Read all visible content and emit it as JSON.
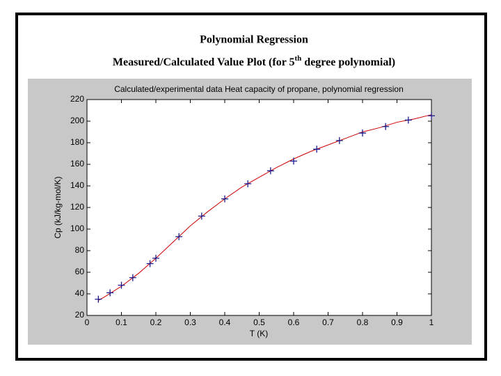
{
  "header": {
    "title": "Polynomial Regression",
    "subtitle": {
      "before": "Measured/Calculated Value Plot (for 5",
      "sup": "th",
      "after": " degree polynomial)"
    }
  },
  "chart_data": {
    "type": "line",
    "title": "Calculated/experimental data Heat capacity of propane, polynomial regression",
    "x_label": "T (K)",
    "y_label": "Cp (kJ/kg-mol/K)",
    "xlim": [
      0,
      1
    ],
    "ylim": [
      20,
      220
    ],
    "xticks": [
      0,
      0.1,
      0.2,
      0.3,
      0.4,
      0.5,
      0.6,
      0.7,
      0.8,
      0.9,
      1
    ],
    "yticks": [
      20,
      40,
      60,
      80,
      100,
      120,
      140,
      160,
      180,
      200,
      220
    ],
    "series": [
      {
        "color": "#cc0000",
        "mode": "lines",
        "x": [
          0.033,
          0.05,
          0.1,
          0.15,
          0.2,
          0.25,
          0.3,
          0.35,
          0.4,
          0.45,
          0.5,
          0.55,
          0.6,
          0.65,
          0.7,
          0.75,
          0.8,
          0.85,
          0.9,
          0.95,
          1.0
        ],
        "values": [
          34,
          37,
          47,
          59,
          73,
          88,
          103,
          116,
          128,
          139,
          148,
          157,
          165,
          172,
          178,
          184,
          190,
          194,
          199,
          202,
          206
        ]
      },
      {
        "color": "#1a1a8c",
        "mode": "markers",
        "x": [
          0.033,
          0.067,
          0.1,
          0.133,
          0.183,
          0.2,
          0.267,
          0.333,
          0.4,
          0.467,
          0.533,
          0.6,
          0.667,
          0.733,
          0.8,
          0.867,
          0.933,
          1.0
        ],
        "values": [
          35,
          41,
          48,
          55,
          68,
          73,
          93,
          112,
          128,
          142,
          154,
          163,
          174,
          182,
          189,
          195,
          201,
          205
        ]
      }
    ]
  }
}
